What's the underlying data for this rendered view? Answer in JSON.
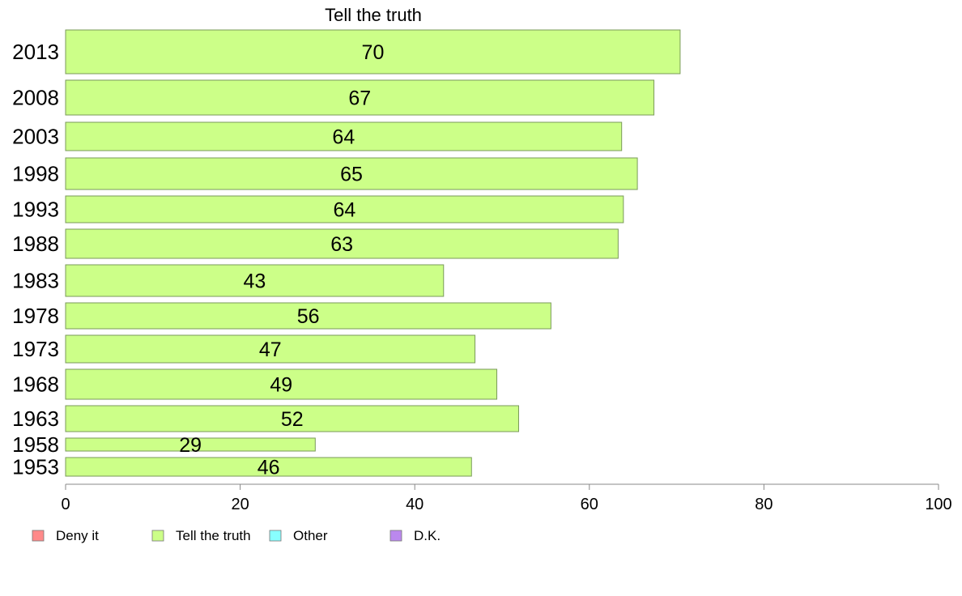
{
  "chart_data": {
    "type": "bar",
    "orientation": "horizontal",
    "title": "Tell the truth",
    "categories": [
      "2013",
      "2008",
      "2003",
      "1998",
      "1993",
      "1988",
      "1983",
      "1978",
      "1973",
      "1968",
      "1963",
      "1958",
      "1953"
    ],
    "values": [
      70,
      67,
      64,
      65,
      64,
      63,
      43,
      56,
      47,
      49,
      52,
      29,
      46
    ],
    "bar_values": [
      70.4,
      67.4,
      63.7,
      65.5,
      63.9,
      63.3,
      43.3,
      55.6,
      46.9,
      49.4,
      51.9,
      28.6,
      46.5
    ],
    "xlim": [
      0,
      100
    ],
    "x_ticks": [
      "0",
      "20",
      "40",
      "60",
      "80",
      "100"
    ],
    "xlabel": "",
    "ylabel": "",
    "grid": false,
    "legend_position": "bottom-left",
    "legend": [
      {
        "label": "Deny it",
        "color": "#ff8a8a"
      },
      {
        "label": "Tell the truth",
        "color": "#ccff88"
      },
      {
        "label": "Other",
        "color": "#88ffff"
      },
      {
        "label": "D.K.",
        "color": "#bb88ee"
      }
    ],
    "bar_color": "#ccff88",
    "bar_border_color": "#7a9a5a"
  }
}
